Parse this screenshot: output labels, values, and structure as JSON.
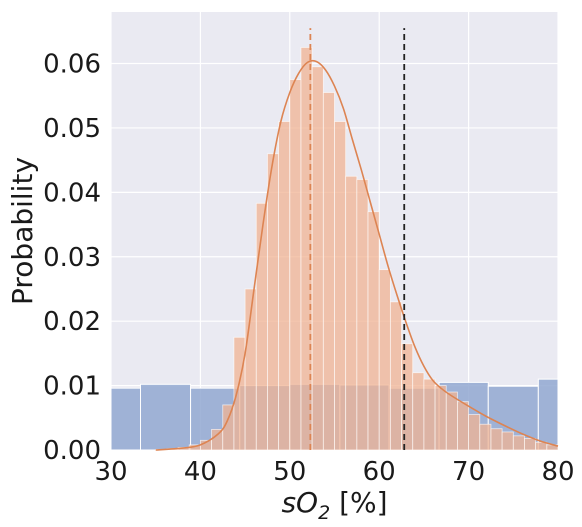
{
  "chart_data": {
    "type": "bar",
    "xlabel": "sO2 [%]",
    "ylabel": "Probability",
    "xlim": [
      30,
      80
    ],
    "ylim": [
      0,
      0.068
    ],
    "x_ticks": [
      30,
      40,
      50,
      60,
      70,
      80
    ],
    "y_ticks": [
      0.0,
      0.01,
      0.02,
      0.03,
      0.04,
      0.05,
      0.06
    ],
    "y_tick_labels": [
      "0.00",
      "0.01",
      "0.02",
      "0.03",
      "0.04",
      "0.05",
      "0.06"
    ],
    "grid": true,
    "colors": {
      "background": "#eaeaf2",
      "grid": "#ffffff",
      "blue_hist": "#92a8d1",
      "orange_hist": "#f0b393",
      "orange_line": "#dd8452",
      "black_line": "#222222"
    },
    "series": [
      {
        "kind": "histogram",
        "color": "#92a8d1",
        "bins": [
          {
            "x0": 30.0,
            "x1": 33.3,
            "value": 0.0096
          },
          {
            "x0": 33.3,
            "x1": 38.9,
            "value": 0.0102
          },
          {
            "x0": 38.9,
            "x1": 44.4,
            "value": 0.0096
          },
          {
            "x0": 44.4,
            "x1": 50.0,
            "value": 0.01
          },
          {
            "x0": 50.0,
            "x1": 55.6,
            "value": 0.0102
          },
          {
            "x0": 55.6,
            "x1": 61.1,
            "value": 0.0101
          },
          {
            "x0": 61.1,
            "x1": 66.7,
            "value": 0.0096
          },
          {
            "x0": 66.7,
            "x1": 72.2,
            "value": 0.0105
          },
          {
            "x0": 72.2,
            "x1": 77.8,
            "value": 0.0099
          },
          {
            "x0": 77.8,
            "x1": 80.0,
            "value": 0.011
          }
        ]
      },
      {
        "kind": "histogram",
        "color": "#f0b393",
        "bin_start": 35.0,
        "bin_width": 1.25,
        "values": [
          0.0001,
          0.0002,
          0.0004,
          0.0008,
          0.0015,
          0.0032,
          0.007,
          0.0175,
          0.025,
          0.0383,
          0.046,
          0.051,
          0.0575,
          0.0625,
          0.0595,
          0.0555,
          0.051,
          0.0425,
          0.042,
          0.037,
          0.028,
          0.023,
          0.0165,
          0.012,
          0.011,
          0.01,
          0.009,
          0.0075,
          0.0055,
          0.004,
          0.0033,
          0.0028,
          0.0022,
          0.0018,
          0.0012,
          0.0008
        ]
      },
      {
        "kind": "kde",
        "color": "#dd8452",
        "x": [
          35,
          38,
          40,
          42,
          43,
          44,
          45,
          46,
          47,
          48,
          49,
          50,
          51,
          52,
          53,
          54,
          55,
          56,
          57,
          58,
          59,
          60,
          61,
          62,
          63,
          64,
          65,
          66,
          67,
          68,
          70,
          72,
          74,
          76,
          78,
          80
        ],
        "y": [
          0.0,
          0.0003,
          0.0008,
          0.0025,
          0.0045,
          0.0085,
          0.015,
          0.025,
          0.035,
          0.044,
          0.051,
          0.0555,
          0.0585,
          0.0602,
          0.0603,
          0.059,
          0.0565,
          0.053,
          0.0482,
          0.0435,
          0.0385,
          0.0335,
          0.0285,
          0.024,
          0.0198,
          0.016,
          0.013,
          0.0108,
          0.0095,
          0.0085,
          0.0068,
          0.0052,
          0.0038,
          0.0025,
          0.0014,
          0.0006
        ]
      },
      {
        "kind": "vline",
        "color": "#dd8452",
        "style": "dashed",
        "x": 52.3
      },
      {
        "kind": "vline",
        "color": "#222222",
        "style": "dashed",
        "x": 62.8
      }
    ]
  }
}
